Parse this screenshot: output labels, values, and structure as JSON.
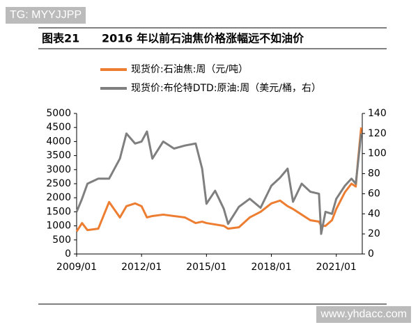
{
  "watermarks": [
    "TG: MYYJJPP",
    "www.yhdacc.com"
  ],
  "chart_data": {
    "type": "line",
    "figure_label": "图表21",
    "title": "2016 年以前石油焦价格涨幅远不如油价",
    "x": [
      2009,
      2009.25,
      2009.5,
      2010,
      2010.5,
      2011,
      2011.3,
      2011.7,
      2012,
      2012.25,
      2012.5,
      2013,
      2013.5,
      2014,
      2014.5,
      2014.8,
      2015,
      2015.4,
      2015.8,
      2016,
      2016.5,
      2017,
      2017.5,
      2018,
      2018.4,
      2018.75,
      2019,
      2019.4,
      2019.8,
      2020.2,
      2020.3,
      2020.5,
      2020.8,
      2021,
      2021.4,
      2021.7,
      2021.9,
      2022,
      2022.15
    ],
    "series": [
      {
        "name": "现货价:石油焦:周（元/吨）",
        "color": "#ed7d31",
        "values": [
          800,
          1100,
          850,
          900,
          1850,
          1300,
          1700,
          1800,
          1700,
          1300,
          1350,
          1400,
          1350,
          1300,
          1100,
          1150,
          1100,
          1050,
          1000,
          900,
          950,
          1300,
          1500,
          1800,
          1900,
          1700,
          1600,
          1400,
          1200,
          1150,
          1000,
          1000,
          1200,
          1600,
          2200,
          2500,
          2400,
          3300,
          4500
        ]
      },
      {
        "name": "现货价:布伦特DTD:原油:周（美元/桶，右）",
        "color": "#7f7f7f",
        "axis": "y2",
        "values": [
          42,
          55,
          70,
          75,
          75,
          95,
          120,
          110,
          112,
          122,
          95,
          112,
          105,
          108,
          110,
          85,
          50,
          63,
          45,
          30,
          47,
          55,
          46,
          68,
          76,
          85,
          52,
          70,
          62,
          60,
          20,
          42,
          40,
          55,
          68,
          75,
          70,
          90,
          120
        ]
      }
    ],
    "xlim": [
      2009,
      2022.2
    ],
    "xticks": [
      {
        "value": 2009,
        "label": "2009/01"
      },
      {
        "value": 2012,
        "label": "2012/01"
      },
      {
        "value": 2015,
        "label": "2015/01"
      },
      {
        "value": 2018,
        "label": "2018/01"
      },
      {
        "value": 2021,
        "label": "2021/01"
      }
    ],
    "ylim": [
      0,
      5000
    ],
    "yticks": [
      0,
      500,
      1000,
      1500,
      2000,
      2500,
      3000,
      3500,
      4000,
      4500,
      5000
    ],
    "y2lim": [
      0,
      140
    ],
    "y2ticks": [
      0,
      20,
      40,
      60,
      80,
      100,
      120,
      140
    ]
  }
}
